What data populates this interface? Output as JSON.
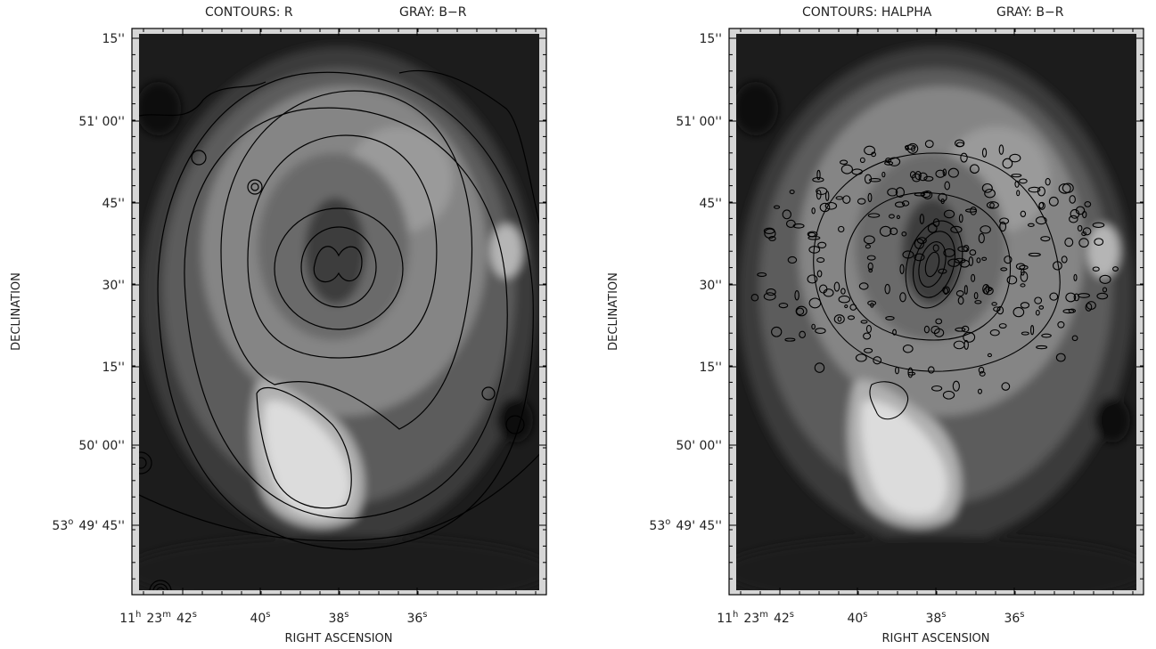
{
  "panels": [
    {
      "title_contours": "CONTOURS: R",
      "title_gray": "GRAY: B−R"
    },
    {
      "title_contours": "CONTOURS: HALPHA",
      "title_gray": "GRAY: B−R"
    }
  ],
  "axes": {
    "y_label": "DECLINATION",
    "x_label": "RIGHT ASCENSION",
    "y_ticks": [
      [
        {
          "text": "15''"
        }
      ],
      [
        {
          "text": "51' 00''"
        }
      ],
      [
        {
          "text": "45''"
        }
      ],
      [
        {
          "text": "30''"
        }
      ],
      [
        {
          "text": "15''"
        }
      ],
      [
        {
          "text": "50' 00''"
        }
      ],
      [
        {
          "text": "53",
          "sup": "o"
        },
        {
          "text": "49' 45''"
        }
      ]
    ],
    "x_ticks": [
      [
        {
          "text": "11",
          "sup": "h"
        },
        {
          "text": "23",
          "sup": "m"
        },
        {
          "text": "42",
          "sup": "s"
        }
      ],
      [
        {
          "text": "40",
          "sup": "s"
        }
      ],
      [
        {
          "text": "38",
          "sup": "s"
        }
      ],
      [
        {
          "text": "36",
          "sup": "s"
        }
      ]
    ]
  }
}
